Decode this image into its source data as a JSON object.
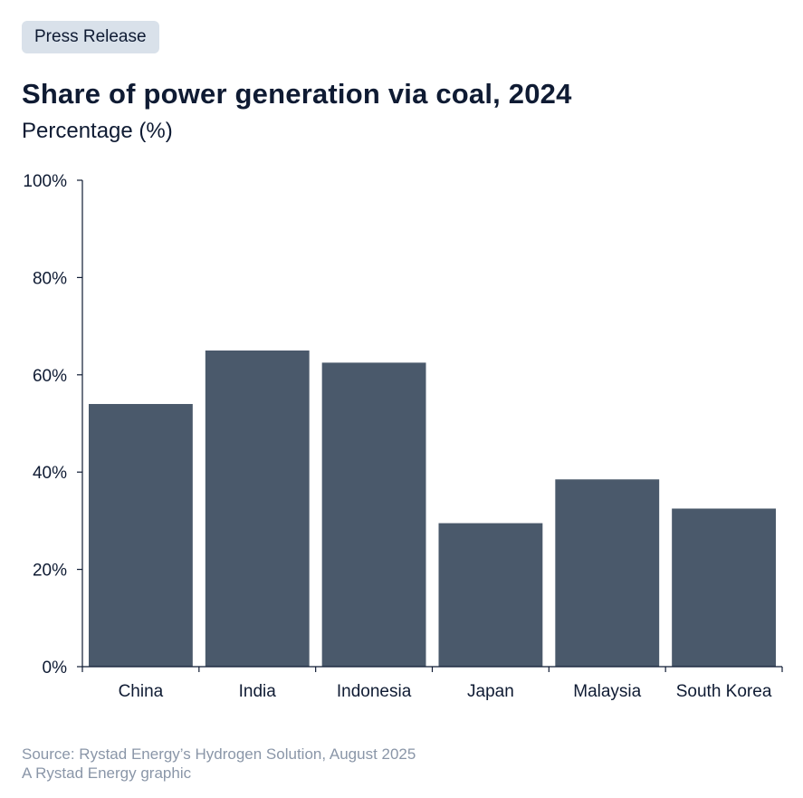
{
  "badge": "Press Release",
  "title": "Share of power generation via coal, 2024",
  "subtitle": "Percentage (%)",
  "footer": {
    "source": "Source: Rystad Energy’s Hydrogen Solution, August 2025",
    "credit": "A Rystad Energy graphic"
  },
  "colors": {
    "bar": "#4a596b",
    "axis": "#0f1b33",
    "text": "#0f1b33",
    "muted": "#8a96a8",
    "badge_bg": "#d9e1ea"
  },
  "chart_data": {
    "type": "bar",
    "categories": [
      "China",
      "India",
      "Indonesia",
      "Japan",
      "Malaysia",
      "South Korea"
    ],
    "values": [
      54,
      65,
      62.5,
      29.5,
      38.5,
      32.5
    ],
    "ylim": [
      0,
      100
    ],
    "yticks": [
      0,
      20,
      40,
      60,
      80,
      100
    ],
    "ytick_labels": [
      "0%",
      "20%",
      "40%",
      "60%",
      "80%",
      "100%"
    ],
    "grid": false,
    "legend": "none",
    "xlabel": "",
    "ylabel": ""
  }
}
